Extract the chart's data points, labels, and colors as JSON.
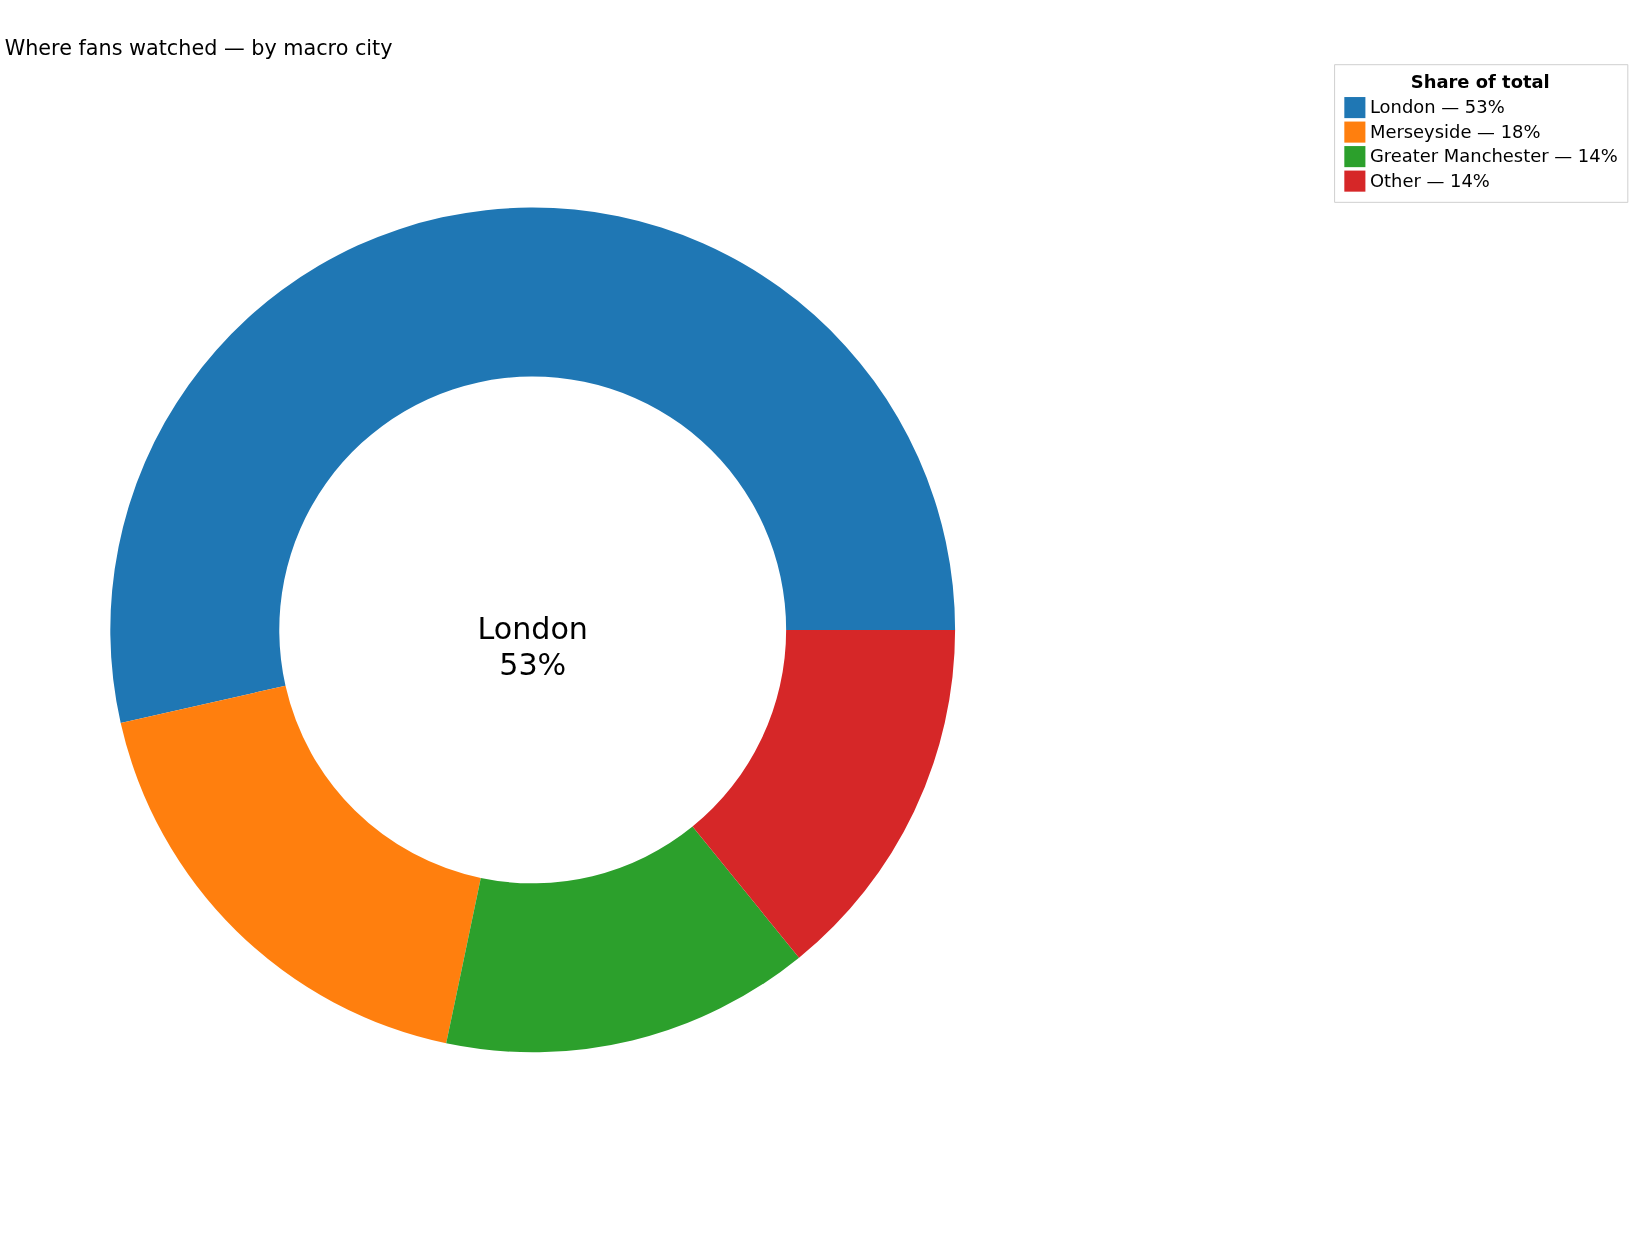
{
  "chart_data": {
    "type": "donut",
    "title": "Where fans watched — by macro city",
    "legend_title": "Share of total",
    "categories": [
      "London — 53%",
      "Merseyside — 18%",
      "Greater Manchester — 14%",
      "Other — 14%"
    ],
    "values": [
      53,
      18,
      14,
      14
    ],
    "colors": [
      "#1f77b4",
      "#ff7f0e",
      "#2ca02c",
      "#d62728"
    ],
    "annotations": [
      "London\n53%"
    ],
    "legend": "right"
  }
}
